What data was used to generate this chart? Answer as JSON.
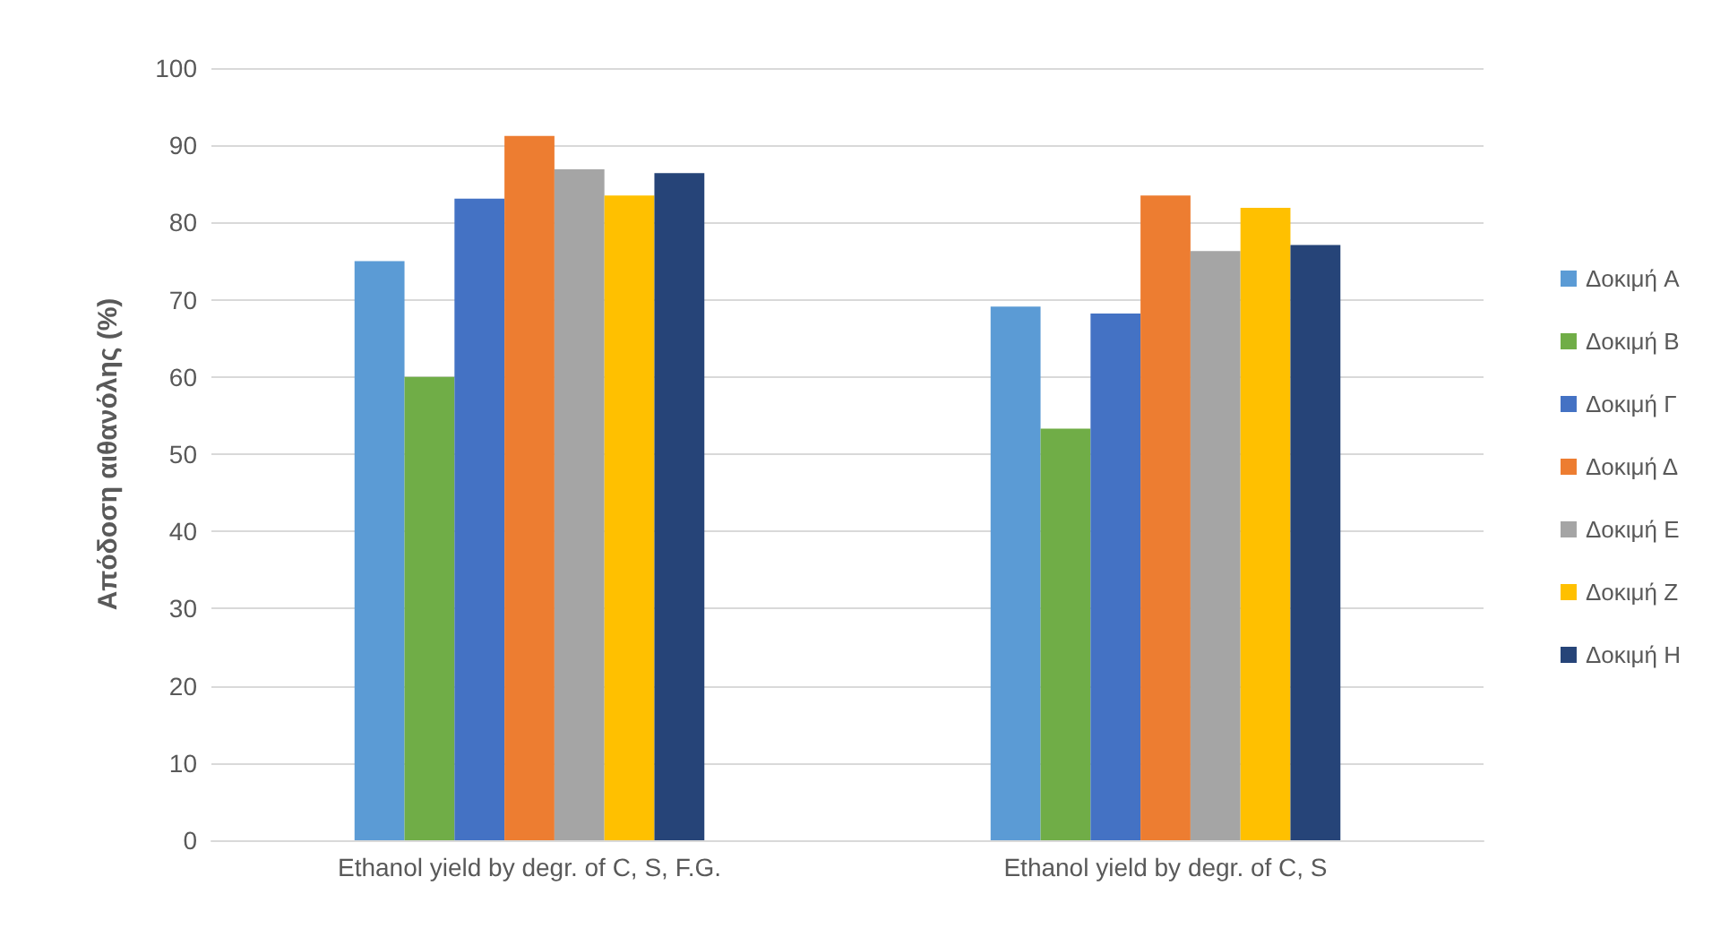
{
  "chart_data": {
    "type": "bar",
    "ylabel": "Απόδοση αιθανόλης (%)",
    "categories": [
      "Ethanol yield by degr. of C, S, F.G.",
      "Ethanol yield by degr. of C, S"
    ],
    "series": [
      {
        "name": "Δοκιμή A",
        "color": "#5b9bd5",
        "values": [
          75,
          69.1
        ]
      },
      {
        "name": "Δοκιμή B",
        "color": "#70ad47",
        "values": [
          60,
          53.3
        ]
      },
      {
        "name": "Δοκιμή Γ",
        "color": "#4472c4",
        "values": [
          83.1,
          68.2
        ]
      },
      {
        "name": "Δοκιμή Δ",
        "color": "#ed7d31",
        "values": [
          91.2,
          83.5
        ]
      },
      {
        "name": "Δοκιμή E",
        "color": "#a5a5a5",
        "values": [
          86.9,
          76.3
        ]
      },
      {
        "name": "Δοκιμή Z",
        "color": "#ffc000",
        "values": [
          83.5,
          81.9
        ]
      },
      {
        "name": "Δοκιμή H",
        "color": "#264478",
        "values": [
          86.4,
          77.1
        ]
      }
    ],
    "ylim": [
      0,
      100
    ],
    "yticks": [
      0,
      10,
      20,
      30,
      40,
      50,
      60,
      70,
      80,
      90,
      100
    ],
    "grid": "y",
    "legend": "right"
  }
}
